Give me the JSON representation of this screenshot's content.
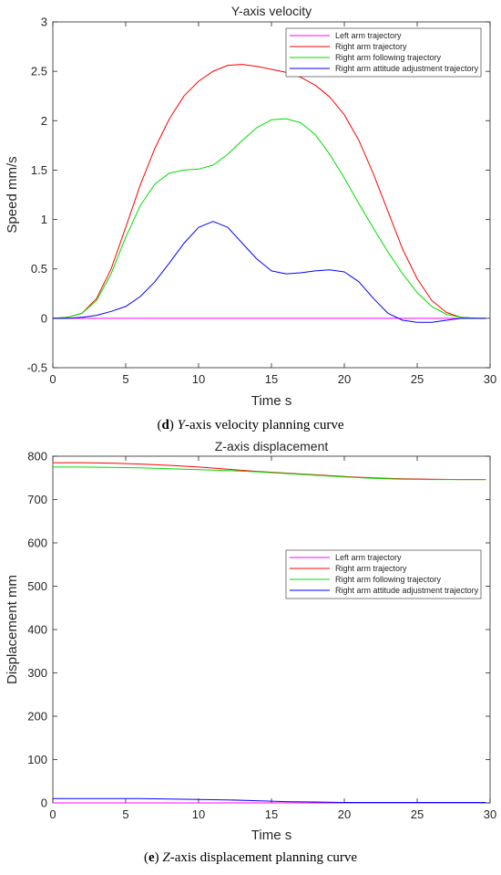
{
  "chart_data": [
    {
      "type": "line",
      "title": "Y-axis velocity",
      "xlabel": "Time  s",
      "ylabel": "Speed  mm/s",
      "xlim": [
        0,
        30
      ],
      "ylim": [
        -0.5,
        3
      ],
      "xticks": [
        "0",
        "5",
        "10",
        "15",
        "20",
        "25",
        "30"
      ],
      "yticks": [
        "-0.5",
        "0",
        "0.5",
        "1",
        "1.5",
        "2",
        "2.5",
        "3"
      ],
      "legend_position": "top-right",
      "caption": {
        "letter": "d",
        "axis": "Y",
        "rest": "-axis velocity planning curve"
      },
      "series": [
        {
          "name": "Left arm trajectory",
          "color": "#ff00ff",
          "x": [
            0,
            29.7
          ],
          "y": [
            0,
            0
          ]
        },
        {
          "name": "Right arm trajectory",
          "color": "#ff0000",
          "x": [
            0,
            1,
            2,
            3,
            4,
            5,
            6,
            7,
            8,
            9,
            10,
            11,
            12,
            13,
            14,
            15,
            16,
            17,
            18,
            19,
            20,
            21,
            22,
            23,
            24,
            25,
            26,
            27,
            28,
            29,
            29.7
          ],
          "y": [
            0,
            0.01,
            0.05,
            0.2,
            0.5,
            0.92,
            1.35,
            1.72,
            2.02,
            2.25,
            2.4,
            2.5,
            2.56,
            2.57,
            2.55,
            2.52,
            2.49,
            2.44,
            2.36,
            2.24,
            2.06,
            1.8,
            1.46,
            1.08,
            0.7,
            0.4,
            0.18,
            0.06,
            0.01,
            0,
            0
          ]
        },
        {
          "name": "Right arm following trajectory",
          "color": "#00dd00",
          "x": [
            0,
            1,
            2,
            3,
            4,
            5,
            6,
            7,
            8,
            9,
            10,
            11,
            12,
            13,
            14,
            15,
            16,
            17,
            18,
            19,
            20,
            21,
            22,
            23,
            24,
            25,
            26,
            27,
            28,
            29,
            29.7
          ],
          "y": [
            0,
            0.01,
            0.05,
            0.18,
            0.45,
            0.82,
            1.14,
            1.36,
            1.47,
            1.5,
            1.51,
            1.55,
            1.66,
            1.8,
            1.93,
            2.01,
            2.02,
            1.98,
            1.86,
            1.66,
            1.42,
            1.16,
            0.91,
            0.67,
            0.45,
            0.26,
            0.12,
            0.04,
            0.01,
            0,
            0
          ]
        },
        {
          "name": "Right arm attitude adjustment trajectory",
          "color": "#0000ff",
          "x": [
            0,
            1,
            2,
            3,
            4,
            5,
            6,
            7,
            8,
            9,
            10,
            11,
            12,
            13,
            14,
            15,
            16,
            17,
            18,
            19,
            20,
            21,
            22,
            23,
            24,
            25,
            26,
            27,
            28,
            29,
            29.7
          ],
          "y": [
            0,
            0,
            0.01,
            0.03,
            0.07,
            0.12,
            0.22,
            0.37,
            0.56,
            0.76,
            0.92,
            0.98,
            0.92,
            0.76,
            0.6,
            0.48,
            0.45,
            0.46,
            0.48,
            0.49,
            0.47,
            0.37,
            0.2,
            0.05,
            -0.02,
            -0.04,
            -0.04,
            -0.02,
            0,
            0,
            0
          ]
        }
      ]
    },
    {
      "type": "line",
      "title": "Z-axis displacement",
      "xlabel": "Time  s",
      "ylabel": "Displacement  mm",
      "xlim": [
        0,
        30
      ],
      "ylim": [
        0,
        800
      ],
      "xticks": [
        "0",
        "5",
        "10",
        "15",
        "20",
        "25",
        "30"
      ],
      "yticks": [
        "0",
        "100",
        "200",
        "300",
        "400",
        "500",
        "600",
        "700",
        "800"
      ],
      "legend_position": "middle-right",
      "caption": {
        "letter": "e",
        "axis": "Z",
        "rest": "-axis displacement planning curve"
      },
      "series": [
        {
          "name": "Left arm trajectory",
          "color": "#ff00ff",
          "x": [
            0,
            29.7
          ],
          "y": [
            0,
            0
          ]
        },
        {
          "name": "Right arm trajectory",
          "color": "#ff0000",
          "x": [
            0,
            2,
            4,
            6,
            8,
            10,
            12,
            14,
            16,
            18,
            20,
            22,
            24,
            26,
            28,
            29.7
          ],
          "y": [
            785,
            785,
            784,
            782,
            779,
            775,
            770,
            765,
            761,
            757,
            753,
            750,
            748,
            747,
            746,
            746
          ]
        },
        {
          "name": "Right arm following trajectory",
          "color": "#00dd00",
          "x": [
            0,
            2,
            4,
            6,
            8,
            10,
            12,
            14,
            16,
            18,
            20,
            22,
            24,
            26,
            28,
            29.7
          ],
          "y": [
            775,
            775,
            774,
            773,
            771,
            769,
            767,
            764,
            760,
            756,
            752,
            749,
            747,
            746,
            746,
            746
          ]
        },
        {
          "name": "Right arm attitude adjustment trajectory",
          "color": "#0000ff",
          "x": [
            0,
            2,
            4,
            6,
            8,
            10,
            12,
            14,
            16,
            18,
            20,
            22,
            24,
            26,
            28,
            29.7
          ],
          "y": [
            10,
            10,
            10,
            10,
            9,
            8,
            7,
            5,
            3,
            2,
            1,
            1,
            1,
            1,
            1,
            1
          ]
        }
      ]
    }
  ]
}
